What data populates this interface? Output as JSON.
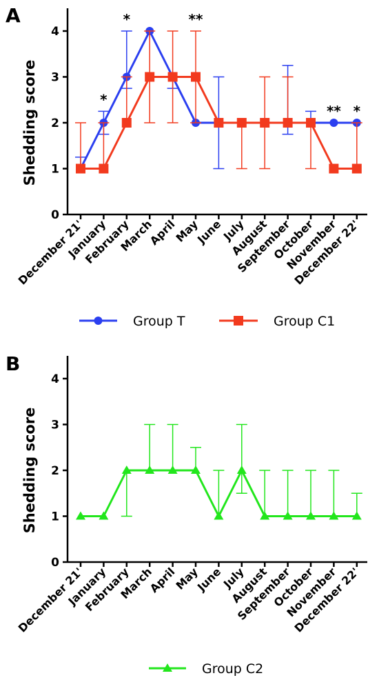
{
  "chart_data": [
    {
      "panel": "A",
      "type": "line",
      "ylabel": "Shedding score",
      "ylim": [
        0,
        4
      ],
      "yticks": [
        "0",
        "1",
        "2",
        "3",
        "4"
      ],
      "categories": [
        "December 21'",
        "January",
        "February",
        "March",
        "April",
        "May",
        "June",
        "July",
        "August",
        "September",
        "October",
        "November",
        "December 22'"
      ],
      "series": [
        {
          "name": "Group T",
          "color": "#2b3ff0",
          "marker": "circle",
          "values": [
            1,
            2,
            3,
            4,
            3,
            2,
            2,
            2,
            2,
            2,
            2,
            2,
            2
          ],
          "err_low": [
            1,
            1.75,
            2.75,
            4,
            2.75,
            2,
            1,
            2,
            2,
            1.75,
            2,
            2,
            2
          ],
          "err_high": [
            1.25,
            2.25,
            4,
            4,
            3,
            2,
            3,
            2,
            2,
            3.25,
            2.25,
            2,
            2
          ]
        },
        {
          "name": "Group C1",
          "color": "#f23a1e",
          "marker": "square",
          "values": [
            1,
            1,
            2,
            3,
            3,
            3,
            2,
            2,
            2,
            2,
            2,
            1,
            1
          ],
          "err_low": [
            1,
            1,
            2,
            2,
            2,
            2,
            2,
            1,
            1,
            2,
            1,
            1,
            1
          ],
          "err_high": [
            2,
            2,
            3,
            4,
            4,
            4,
            2,
            2,
            3,
            3,
            2,
            1,
            2
          ]
        }
      ],
      "annotations": [
        {
          "category": "January",
          "text": "*"
        },
        {
          "category": "February",
          "text": "*"
        },
        {
          "category": "May",
          "text": "**"
        },
        {
          "category": "November",
          "text": "**"
        },
        {
          "category": "December 22'",
          "text": "*"
        }
      ],
      "legend_position": "bottom"
    },
    {
      "panel": "B",
      "type": "line",
      "ylabel": "Shedding score",
      "ylim": [
        0,
        4
      ],
      "yticks": [
        "0",
        "1",
        "2",
        "3",
        "4"
      ],
      "categories": [
        "December 21'",
        "January",
        "February",
        "March",
        "April",
        "May",
        "June",
        "July",
        "August",
        "September",
        "October",
        "November",
        "December 22'"
      ],
      "series": [
        {
          "name": "Group C2",
          "color": "#22e61c",
          "marker": "triangle",
          "values": [
            1,
            1,
            2,
            2,
            2,
            2,
            1,
            2,
            1,
            1,
            1,
            1,
            1
          ],
          "err_low": [
            1,
            1,
            1,
            2,
            2,
            2,
            1,
            1.5,
            1,
            1,
            1,
            1,
            1
          ],
          "err_high": [
            1,
            1,
            2,
            3,
            3,
            2.5,
            2,
            3,
            2,
            2,
            2,
            2,
            1.5
          ]
        }
      ],
      "annotations": [],
      "legend_position": "bottom"
    }
  ]
}
